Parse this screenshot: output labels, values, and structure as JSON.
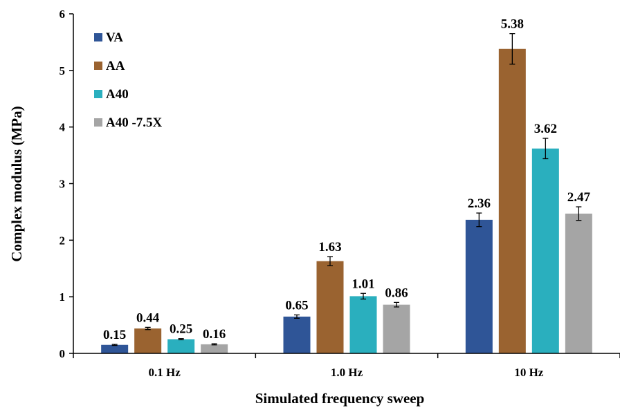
{
  "chart_data": {
    "type": "bar",
    "xlabel": "Simulated frequency sweep",
    "ylabel": "Complex modulus (MPa)",
    "ylim": [
      0,
      6
    ],
    "yticks": [
      0,
      1,
      2,
      3,
      4,
      5,
      6
    ],
    "grid": false,
    "legend_position": "top-left",
    "categories": [
      "0.1 Hz",
      "1.0 Hz",
      "10 Hz"
    ],
    "series": [
      {
        "name": "VA",
        "color": "#2F5597",
        "values": [
          0.15,
          0.65,
          2.36
        ],
        "labels": [
          "0.15",
          "0.65",
          "2.36"
        ],
        "errors": [
          0.01,
          0.03,
          0.12
        ]
      },
      {
        "name": "AA",
        "color": "#9A6330",
        "values": [
          0.44,
          1.63,
          5.38
        ],
        "labels": [
          "0.44",
          "1.63",
          "5.38"
        ],
        "errors": [
          0.02,
          0.08,
          0.27
        ]
      },
      {
        "name": "A40",
        "color": "#2AAFBE",
        "values": [
          0.25,
          1.01,
          3.62
        ],
        "labels": [
          "0.25",
          "1.01",
          "3.62"
        ],
        "errors": [
          0.01,
          0.05,
          0.18
        ]
      },
      {
        "name": "A40 -7.5X",
        "color": "#A5A5A5",
        "values": [
          0.16,
          0.86,
          2.47
        ],
        "labels": [
          "0.16",
          "0.86",
          "2.47"
        ],
        "errors": [
          0.01,
          0.04,
          0.12
        ]
      }
    ]
  }
}
